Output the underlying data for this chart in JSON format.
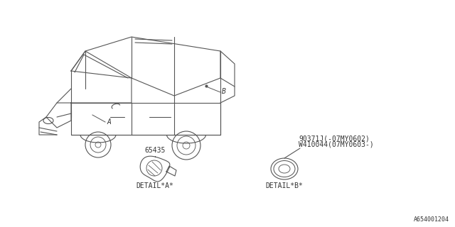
{
  "background_color": "#ffffff",
  "line_color": "#555555",
  "text_color": "#333333",
  "part_number_A": "65435",
  "part_number_B1": "90371J(-07MY0602)",
  "part_number_B2": "W410044(07MY0603-)",
  "label_A": "A",
  "label_B": "B",
  "detail_A_label": "DETAIL*A*",
  "detail_B_label": "DETAIL*B*",
  "diagram_id": "A654001204",
  "font_size_parts": 7,
  "font_size_labels": 7,
  "font_size_detail": 7,
  "font_size_id": 6
}
